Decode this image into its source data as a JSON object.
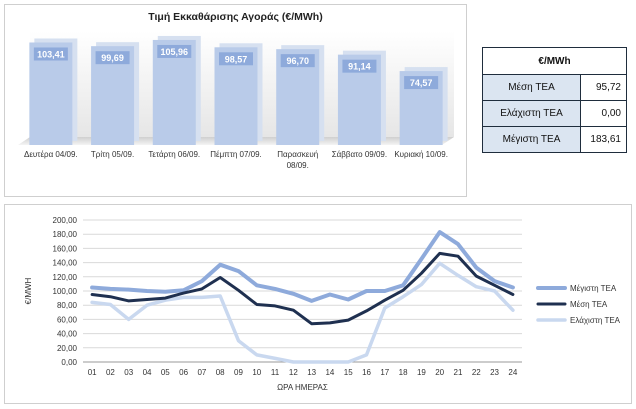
{
  "chart_data": [
    {
      "type": "bar",
      "title": "Τιμή Εκκαθάρισης Αγοράς (€/MWh)",
      "categories": [
        [
          "Δευτέρα 04/09."
        ],
        [
          "Τρίτη 05/09."
        ],
        [
          "Τετάρτη 06/09."
        ],
        [
          "Πέμπτη 07/09."
        ],
        [
          "Παρασκευή",
          "08/09."
        ],
        [
          "Σάββατο 09/09."
        ],
        [
          "Κυριακή 10/09."
        ]
      ],
      "values": [
        103.41,
        99.69,
        105.96,
        98.57,
        96.7,
        91.14,
        74.57
      ],
      "value_labels": [
        "103,41",
        "99,69",
        "105,96",
        "98,57",
        "96,70",
        "91,14",
        "74,57"
      ],
      "ylim": [
        0,
        115
      ],
      "bar_color": "#b9cbe9",
      "label_color": "#8eaadb"
    },
    {
      "type": "line",
      "x": [
        "01",
        "02",
        "03",
        "04",
        "05",
        "06",
        "07",
        "08",
        "09",
        "10",
        "11",
        "12",
        "13",
        "14",
        "15",
        "16",
        "17",
        "18",
        "19",
        "20",
        "21",
        "22",
        "23",
        "24"
      ],
      "xlabel": "ΩΡΑ ΗΜΕΡΑΣ",
      "ylabel": "€/MWH",
      "ylim": [
        0,
        200
      ],
      "yticks": [
        "0,00",
        "20,00",
        "40,00",
        "60,00",
        "80,00",
        "100,00",
        "120,00",
        "140,00",
        "160,00",
        "180,00",
        "200,00"
      ],
      "grid": true,
      "legend": "right",
      "series": [
        {
          "name": "Μέγιστη ΤΕΑ",
          "color": "#8eaadb",
          "values": [
            105,
            103,
            102,
            100,
            99,
            101,
            114,
            137,
            128,
            108,
            103,
            96,
            86,
            95,
            88,
            100,
            100,
            108,
            145,
            183,
            166,
            133,
            114,
            105
          ]
        },
        {
          "name": "Μέση ΤΕΑ",
          "color": "#1f3050",
          "values": [
            95,
            92,
            86,
            88,
            90,
            97,
            103,
            119,
            101,
            81,
            79,
            73,
            54,
            55,
            59,
            72,
            87,
            101,
            125,
            153,
            149,
            121,
            108,
            95
          ]
        },
        {
          "name": "Ελάχιστη ΤΕΑ",
          "color": "#c9d8ef",
          "values": [
            84,
            81,
            60,
            80,
            87,
            91,
            91,
            93,
            30,
            10,
            5,
            0,
            0,
            0,
            0,
            10,
            76,
            92,
            109,
            139,
            122,
            106,
            100,
            73
          ]
        }
      ]
    }
  ],
  "stats": {
    "header": "€/MWh",
    "rows": [
      {
        "label": "Μέση ΤΕΑ",
        "value": "95,72"
      },
      {
        "label": "Ελάχιστη ΤΕΑ",
        "value": "0,00"
      },
      {
        "label": "Μέγιστη ΤΕΑ",
        "value": "183,61"
      }
    ]
  }
}
